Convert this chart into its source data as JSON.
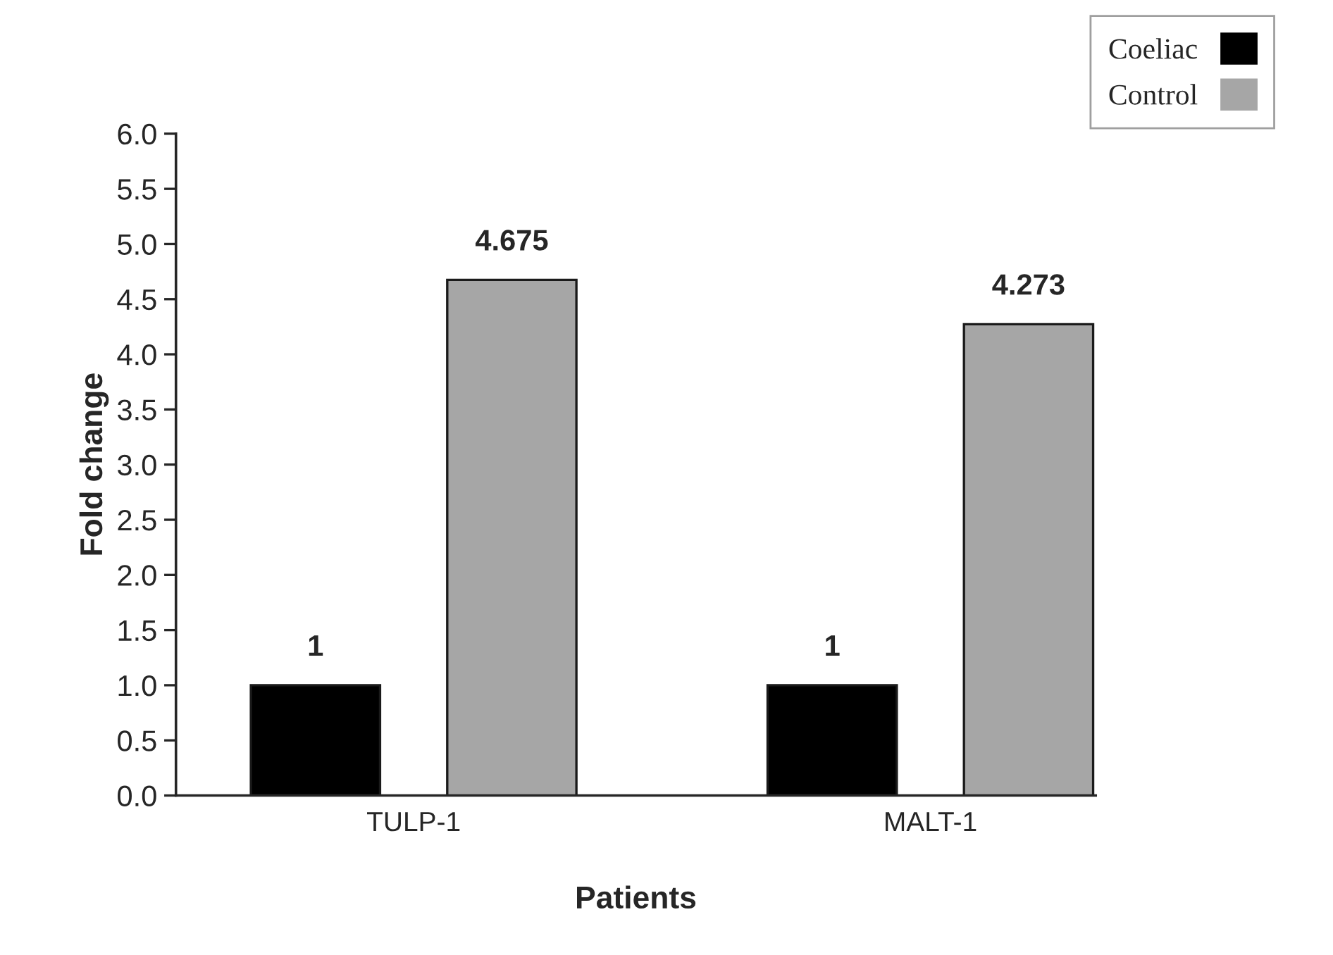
{
  "chart_data": {
    "type": "bar",
    "xlabel": "Patients",
    "ylabel": "Fold change",
    "categories": [
      "TULP-1",
      "MALT-1"
    ],
    "series": [
      {
        "name": "Coeliac",
        "color": "#000000",
        "values": [
          1,
          1
        ]
      },
      {
        "name": "Control",
        "color": "#a6a6a6",
        "values": [
          4.675,
          4.273
        ]
      }
    ],
    "ylim": [
      0,
      6
    ],
    "yticks": [
      {
        "value": 0,
        "label": "0.0"
      },
      0.5,
      {
        "value": 1,
        "label": "1.0"
      },
      1.5,
      {
        "value": 2,
        "label": "2.0"
      },
      2.5,
      {
        "value": 3,
        "label": "3.0"
      },
      3.5,
      {
        "value": 4,
        "label": "4.0"
      },
      4.5,
      {
        "value": 5,
        "label": "5.0"
      },
      5.5,
      {
        "value": 6,
        "label": "6.0"
      }
    ],
    "data_labels": true,
    "grid": false,
    "legend": "top right"
  }
}
